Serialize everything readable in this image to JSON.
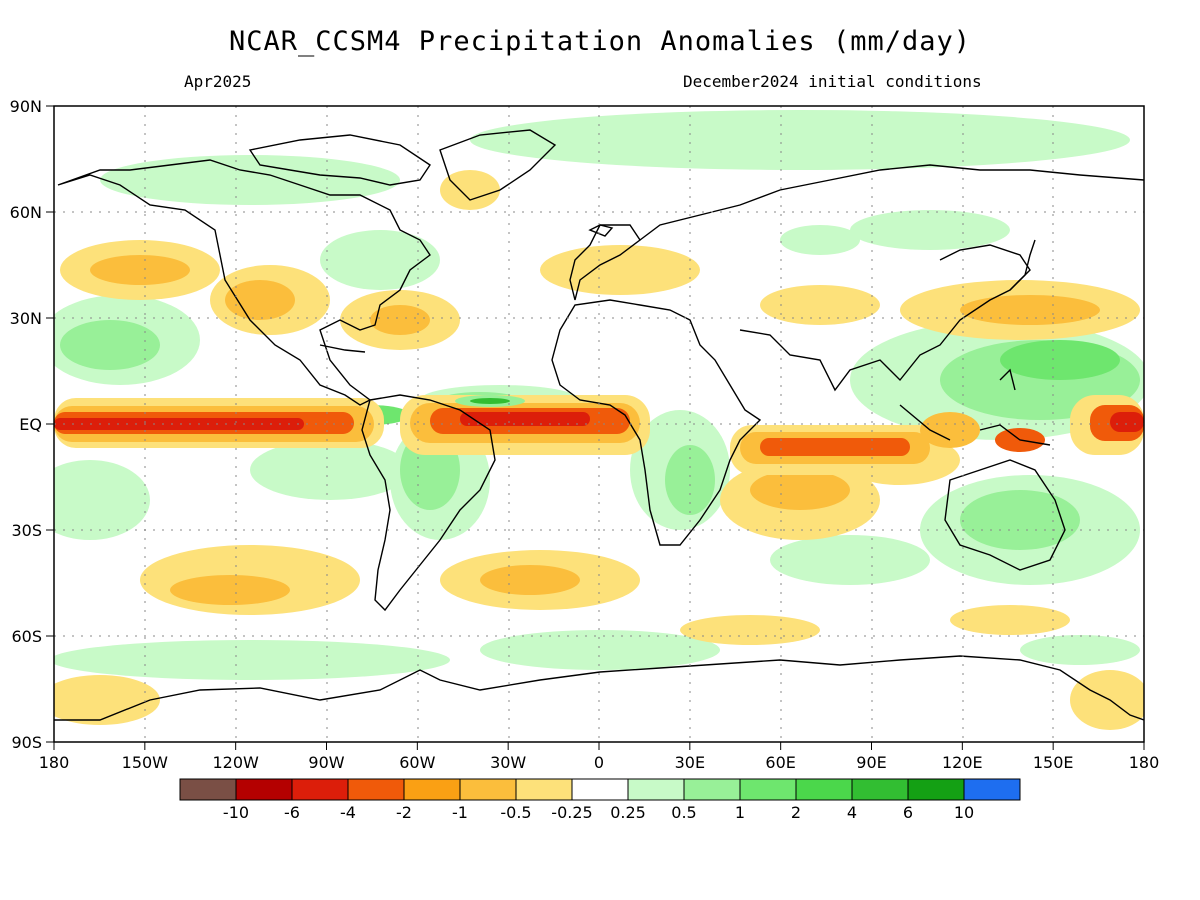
{
  "title": "NCAR_CCSM4 Precipitation Anomalies (mm/day)",
  "valid_month": "Apr2025",
  "init_conditions": "December2024 initial conditions",
  "lat_labels": [
    "90N",
    "60N",
    "30N",
    "EQ",
    "30S",
    "60S",
    "90S"
  ],
  "lat_values": [
    90,
    60,
    30,
    0,
    -30,
    -60,
    -90
  ],
  "lon_labels": [
    "180",
    "150W",
    "120W",
    "90W",
    "60W",
    "30W",
    "0",
    "30E",
    "60E",
    "90E",
    "120E",
    "150E",
    "180"
  ],
  "lon_values": [
    -180,
    -150,
    -120,
    -90,
    -60,
    -30,
    0,
    30,
    60,
    90,
    120,
    150,
    180
  ],
  "colorbar": {
    "labels": [
      "-10",
      "-6",
      "-4",
      "-2",
      "-1",
      "-0.5",
      "-0.25",
      "0.25",
      "0.5",
      "1",
      "2",
      "4",
      "6",
      "10"
    ],
    "colors": [
      "#7a4f45",
      "#b40000",
      "#dc1e0a",
      "#f05a0a",
      "#faa014",
      "#fbbe3c",
      "#fde17a",
      "#ffffff",
      "#c8fac8",
      "#98f098",
      "#6ee66e",
      "#4bd74b",
      "#32be32",
      "#14a014",
      "#1e6ef0"
    ]
  },
  "map_colors": {
    "neg_light": "#fde17a",
    "neg_mid": "#fbbe3c",
    "neg_strong": "#f05a0a",
    "neg_extreme": "#dc1e0a",
    "pos_light": "#c8fac8",
    "pos_mid": "#98f098",
    "pos_strong": "#6ee66e",
    "pos_extreme": "#32be32",
    "coast": "#000000"
  }
}
